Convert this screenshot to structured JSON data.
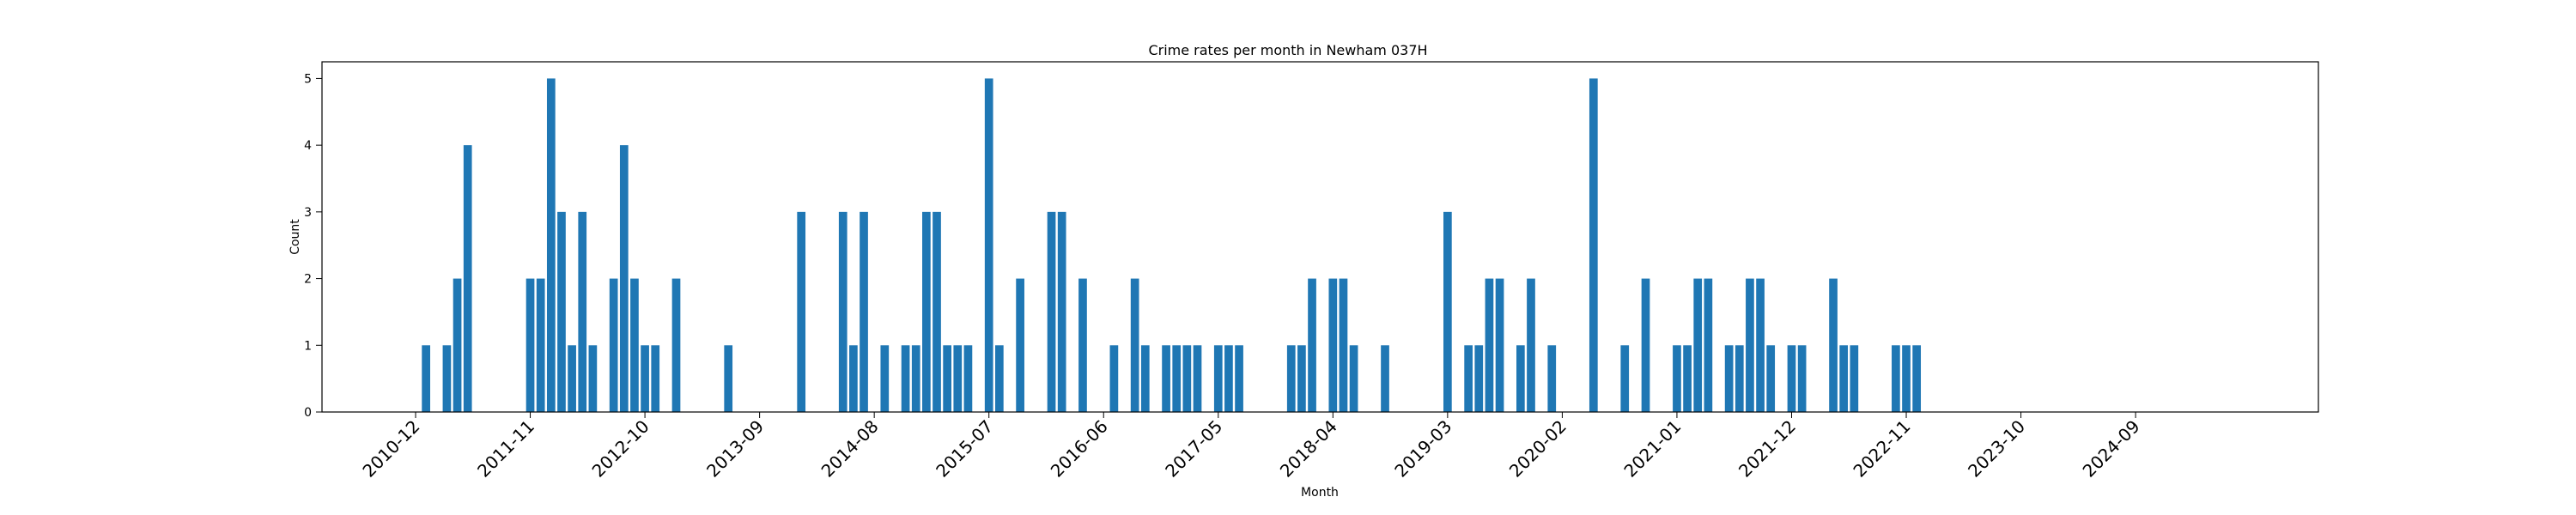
{
  "chart_data": {
    "type": "bar",
    "title": "Crime rates per month in Newham 037H",
    "xlabel": "Month",
    "ylabel": "Count",
    "ylim": [
      0,
      5.25
    ],
    "yticks": [
      0,
      1,
      2,
      3,
      4,
      5
    ],
    "xticks": [
      "2010-12",
      "2011-11",
      "2012-10",
      "2013-09",
      "2014-08",
      "2015-07",
      "2016-06",
      "2017-05",
      "2018-04",
      "2019-03",
      "2020-02",
      "2021-01",
      "2021-12",
      "2022-11",
      "2023-10",
      "2024-09"
    ],
    "grid": false,
    "categories": [
      "2011-01",
      "2011-03",
      "2011-04",
      "2011-05",
      "2011-11",
      "2011-12",
      "2012-01",
      "2012-02",
      "2012-03",
      "2012-04",
      "2012-05",
      "2012-07",
      "2012-08",
      "2012-09",
      "2012-10",
      "2012-11",
      "2013-01",
      "2013-06",
      "2014-01",
      "2014-05",
      "2014-06",
      "2014-07",
      "2014-09",
      "2014-11",
      "2014-12",
      "2015-01",
      "2015-02",
      "2015-03",
      "2015-04",
      "2015-05",
      "2015-07",
      "2015-08",
      "2015-10",
      "2016-01",
      "2016-02",
      "2016-04",
      "2016-07",
      "2016-09",
      "2016-10",
      "2016-12",
      "2017-01",
      "2017-02",
      "2017-03",
      "2017-05",
      "2017-06",
      "2017-07",
      "2017-12",
      "2018-01",
      "2018-02",
      "2018-04",
      "2018-05",
      "2018-06",
      "2018-09",
      "2019-03",
      "2019-05",
      "2019-06",
      "2019-07",
      "2019-08",
      "2019-10",
      "2019-11",
      "2020-01",
      "2020-05",
      "2020-08",
      "2020-10",
      "2021-01",
      "2021-02",
      "2021-03",
      "2021-04",
      "2021-06",
      "2021-07",
      "2021-08",
      "2021-09",
      "2021-10",
      "2021-12",
      "2022-01",
      "2022-04",
      "2022-05",
      "2022-06",
      "2022-10",
      "2022-11",
      "2022-12"
    ],
    "values": [
      1,
      1,
      2,
      4,
      2,
      2,
      5,
      3,
      1,
      3,
      1,
      2,
      4,
      2,
      1,
      1,
      2,
      1,
      3,
      3,
      1,
      3,
      1,
      1,
      1,
      3,
      3,
      1,
      1,
      1,
      5,
      1,
      2,
      3,
      3,
      2,
      1,
      2,
      1,
      1,
      1,
      1,
      1,
      1,
      1,
      1,
      1,
      1,
      2,
      2,
      2,
      1,
      1,
      3,
      1,
      1,
      2,
      2,
      1,
      2,
      1,
      5,
      1,
      2,
      1,
      1,
      2,
      2,
      1,
      1,
      2,
      2,
      1,
      1,
      1,
      2,
      1,
      1,
      1,
      1,
      1
    ]
  }
}
